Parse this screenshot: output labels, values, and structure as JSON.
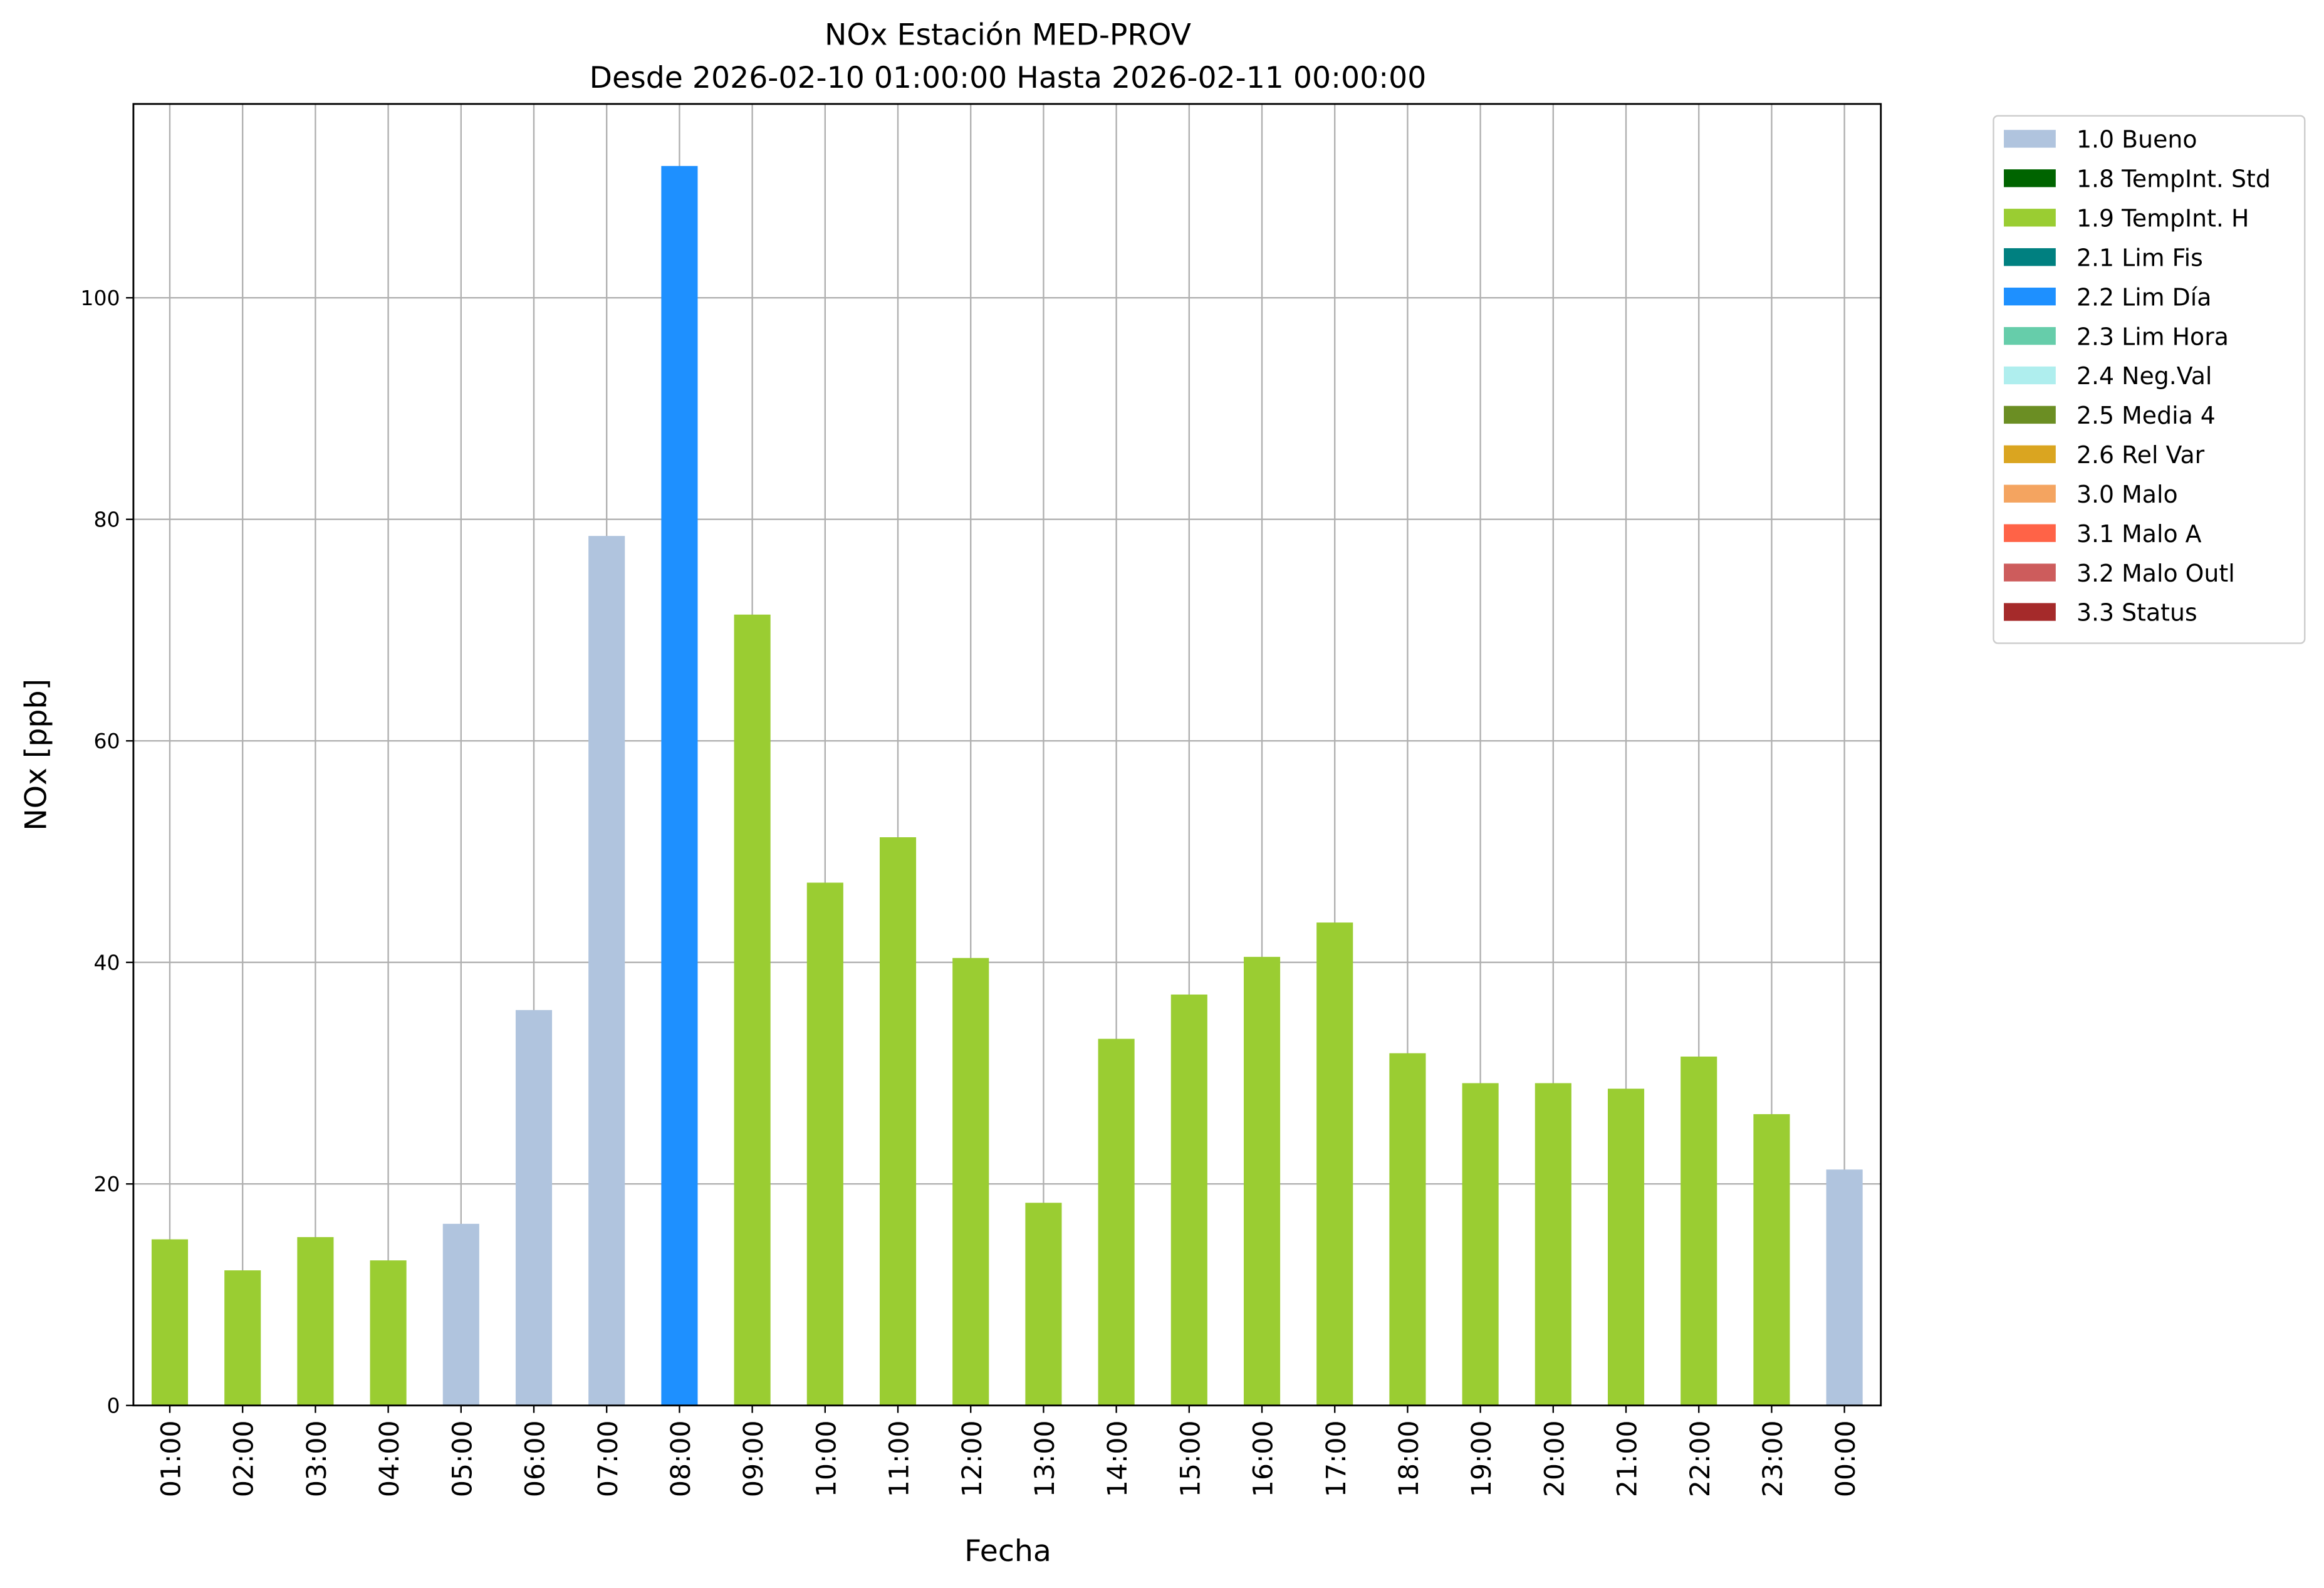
{
  "chart_data": {
    "type": "bar",
    "stacked": true,
    "title": "NOx Estación MED-PROV",
    "subtitle": "Desde 2026-02-10 01:00:00 Hasta 2026-02-11 00:00:00",
    "x_label": "Fecha",
    "y_label": "NOx [ppb]",
    "categories": [
      "01:00",
      "02:00",
      "03:00",
      "04:00",
      "05:00",
      "06:00",
      "07:00",
      "08:00",
      "09:00",
      "10:00",
      "11:00",
      "12:00",
      "13:00",
      "14:00",
      "15:00",
      "16:00",
      "17:00",
      "18:00",
      "19:00",
      "20:00",
      "21:00",
      "22:00",
      "23:00",
      "00:00"
    ],
    "series": [
      {
        "name": "1.0 Bueno",
        "color": "#b0c4de",
        "values": [
          null,
          null,
          null,
          null,
          16.4,
          35.7,
          78.5,
          null,
          null,
          null,
          null,
          null,
          null,
          null,
          null,
          null,
          null,
          null,
          null,
          null,
          null,
          null,
          null,
          21.3
        ]
      },
      {
        "name": "1.8 TempInt. Std",
        "color": "#006400",
        "values": [
          null,
          null,
          null,
          null,
          null,
          null,
          null,
          null,
          null,
          null,
          null,
          null,
          null,
          null,
          null,
          null,
          null,
          null,
          null,
          null,
          null,
          null,
          null,
          null
        ]
      },
      {
        "name": "1.9 TempInt. H",
        "color": "#9acd32",
        "values": [
          15.0,
          12.2,
          15.2,
          13.1,
          null,
          null,
          null,
          null,
          71.4,
          47.2,
          51.3,
          40.4,
          18.3,
          33.1,
          37.1,
          40.5,
          43.6,
          31.8,
          29.1,
          29.1,
          28.6,
          31.5,
          26.3,
          null
        ]
      },
      {
        "name": "2.1 Lim Fis",
        "color": "#008080",
        "values": [
          null,
          null,
          null,
          null,
          null,
          null,
          null,
          null,
          null,
          null,
          null,
          null,
          null,
          null,
          null,
          null,
          null,
          null,
          null,
          null,
          null,
          null,
          null,
          null
        ]
      },
      {
        "name": "2.2 Lim Día",
        "color": "#1e90ff",
        "values": [
          null,
          null,
          null,
          null,
          null,
          null,
          null,
          111.9,
          null,
          null,
          null,
          null,
          null,
          null,
          null,
          null,
          null,
          null,
          null,
          null,
          null,
          null,
          null,
          null
        ]
      },
      {
        "name": "2.3 Lim Hora",
        "color": "#66cdaa",
        "values": [
          null,
          null,
          null,
          null,
          null,
          null,
          null,
          null,
          null,
          null,
          null,
          null,
          null,
          null,
          null,
          null,
          null,
          null,
          null,
          null,
          null,
          null,
          null,
          null
        ]
      },
      {
        "name": "2.4 Neg.Val",
        "color": "#afeeee",
        "values": [
          null,
          null,
          null,
          null,
          null,
          null,
          null,
          null,
          null,
          null,
          null,
          null,
          null,
          null,
          null,
          null,
          null,
          null,
          null,
          null,
          null,
          null,
          null,
          null
        ]
      },
      {
        "name": "2.5 Media 4",
        "color": "#6b8e23",
        "values": [
          null,
          null,
          null,
          null,
          null,
          null,
          null,
          null,
          null,
          null,
          null,
          null,
          null,
          null,
          null,
          null,
          null,
          null,
          null,
          null,
          null,
          null,
          null,
          null
        ]
      },
      {
        "name": "2.6 Rel Var",
        "color": "#daa520",
        "values": [
          null,
          null,
          null,
          null,
          null,
          null,
          null,
          null,
          null,
          null,
          null,
          null,
          null,
          null,
          null,
          null,
          null,
          null,
          null,
          null,
          null,
          null,
          null,
          null
        ]
      },
      {
        "name": "3.0 Malo",
        "color": "#f4a460",
        "values": [
          null,
          null,
          null,
          null,
          null,
          null,
          null,
          null,
          null,
          null,
          null,
          null,
          null,
          null,
          null,
          null,
          null,
          null,
          null,
          null,
          null,
          null,
          null,
          null
        ]
      },
      {
        "name": "3.1 Malo A",
        "color": "#ff6347",
        "values": [
          null,
          null,
          null,
          null,
          null,
          null,
          null,
          null,
          null,
          null,
          null,
          null,
          null,
          null,
          null,
          null,
          null,
          null,
          null,
          null,
          null,
          null,
          null,
          null
        ]
      },
      {
        "name": "3.2 Malo Outl",
        "color": "#cd5c5c",
        "values": [
          null,
          null,
          null,
          null,
          null,
          null,
          null,
          null,
          null,
          null,
          null,
          null,
          null,
          null,
          null,
          null,
          null,
          null,
          null,
          null,
          null,
          null,
          null,
          null
        ]
      },
      {
        "name": "3.3 Status",
        "color": "#a52a2a",
        "values": [
          null,
          null,
          null,
          null,
          null,
          null,
          null,
          null,
          null,
          null,
          null,
          null,
          null,
          null,
          null,
          null,
          null,
          null,
          null,
          null,
          null,
          null,
          null,
          null
        ]
      }
    ],
    "ylim": [
      0,
      117.5
    ],
    "yticks": [
      0,
      20,
      40,
      60,
      80,
      100
    ],
    "grid": true,
    "legend": "outside right"
  }
}
